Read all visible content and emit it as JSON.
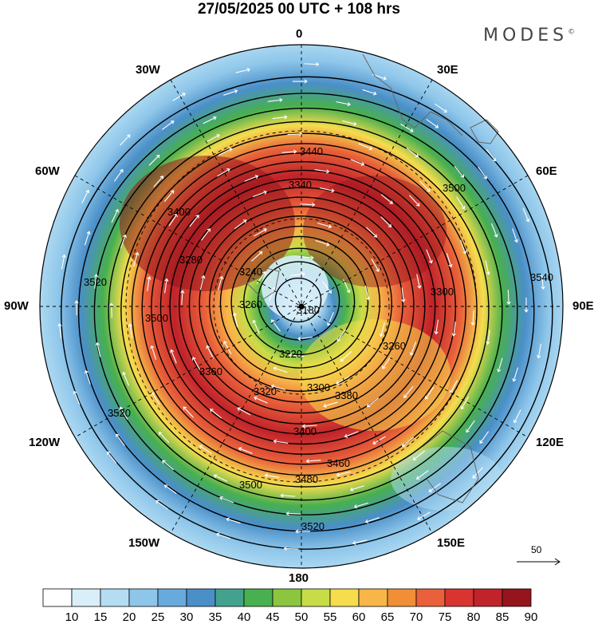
{
  "title": "27/05/2025  00 UTC  + 108 hrs",
  "brand": "MODES",
  "brand_mark": "©",
  "lon_labels": {
    "n0": "0",
    "e30": "30E",
    "e60": "60E",
    "e90": "90E",
    "e120": "120E",
    "e150": "150E",
    "s180": "180",
    "w150": "150W",
    "w120": "120W",
    "w90": "90W",
    "w60": "60W",
    "w30": "30W"
  },
  "vector_reference": "50",
  "colorbar": {
    "levels": [
      "10",
      "15",
      "20",
      "25",
      "30",
      "35",
      "40",
      "45",
      "50",
      "55",
      "60",
      "65",
      "70",
      "75",
      "80",
      "85",
      "90"
    ],
    "colors": [
      "#ffffff",
      "#d8eef9",
      "#b4ddf3",
      "#8ec6ea",
      "#68aadc",
      "#4a8fc8",
      "#43a28e",
      "#48b04e",
      "#8bc63e",
      "#c8dc48",
      "#f5dd4d",
      "#f8b648",
      "#f18f37",
      "#e9603a",
      "#d93430",
      "#c1232a",
      "#96141c"
    ]
  },
  "map_data": {
    "projection": "north-polar-stereographic",
    "field": "wind speed (shaded) with geopotential height contours",
    "contour_labels": [
      "3180",
      "3220",
      "3240",
      "3260",
      "3280",
      "3300",
      "3320",
      "3340",
      "3360",
      "3380",
      "3400",
      "3440",
      "3460",
      "3480",
      "3500",
      "3520",
      "3540"
    ]
  }
}
